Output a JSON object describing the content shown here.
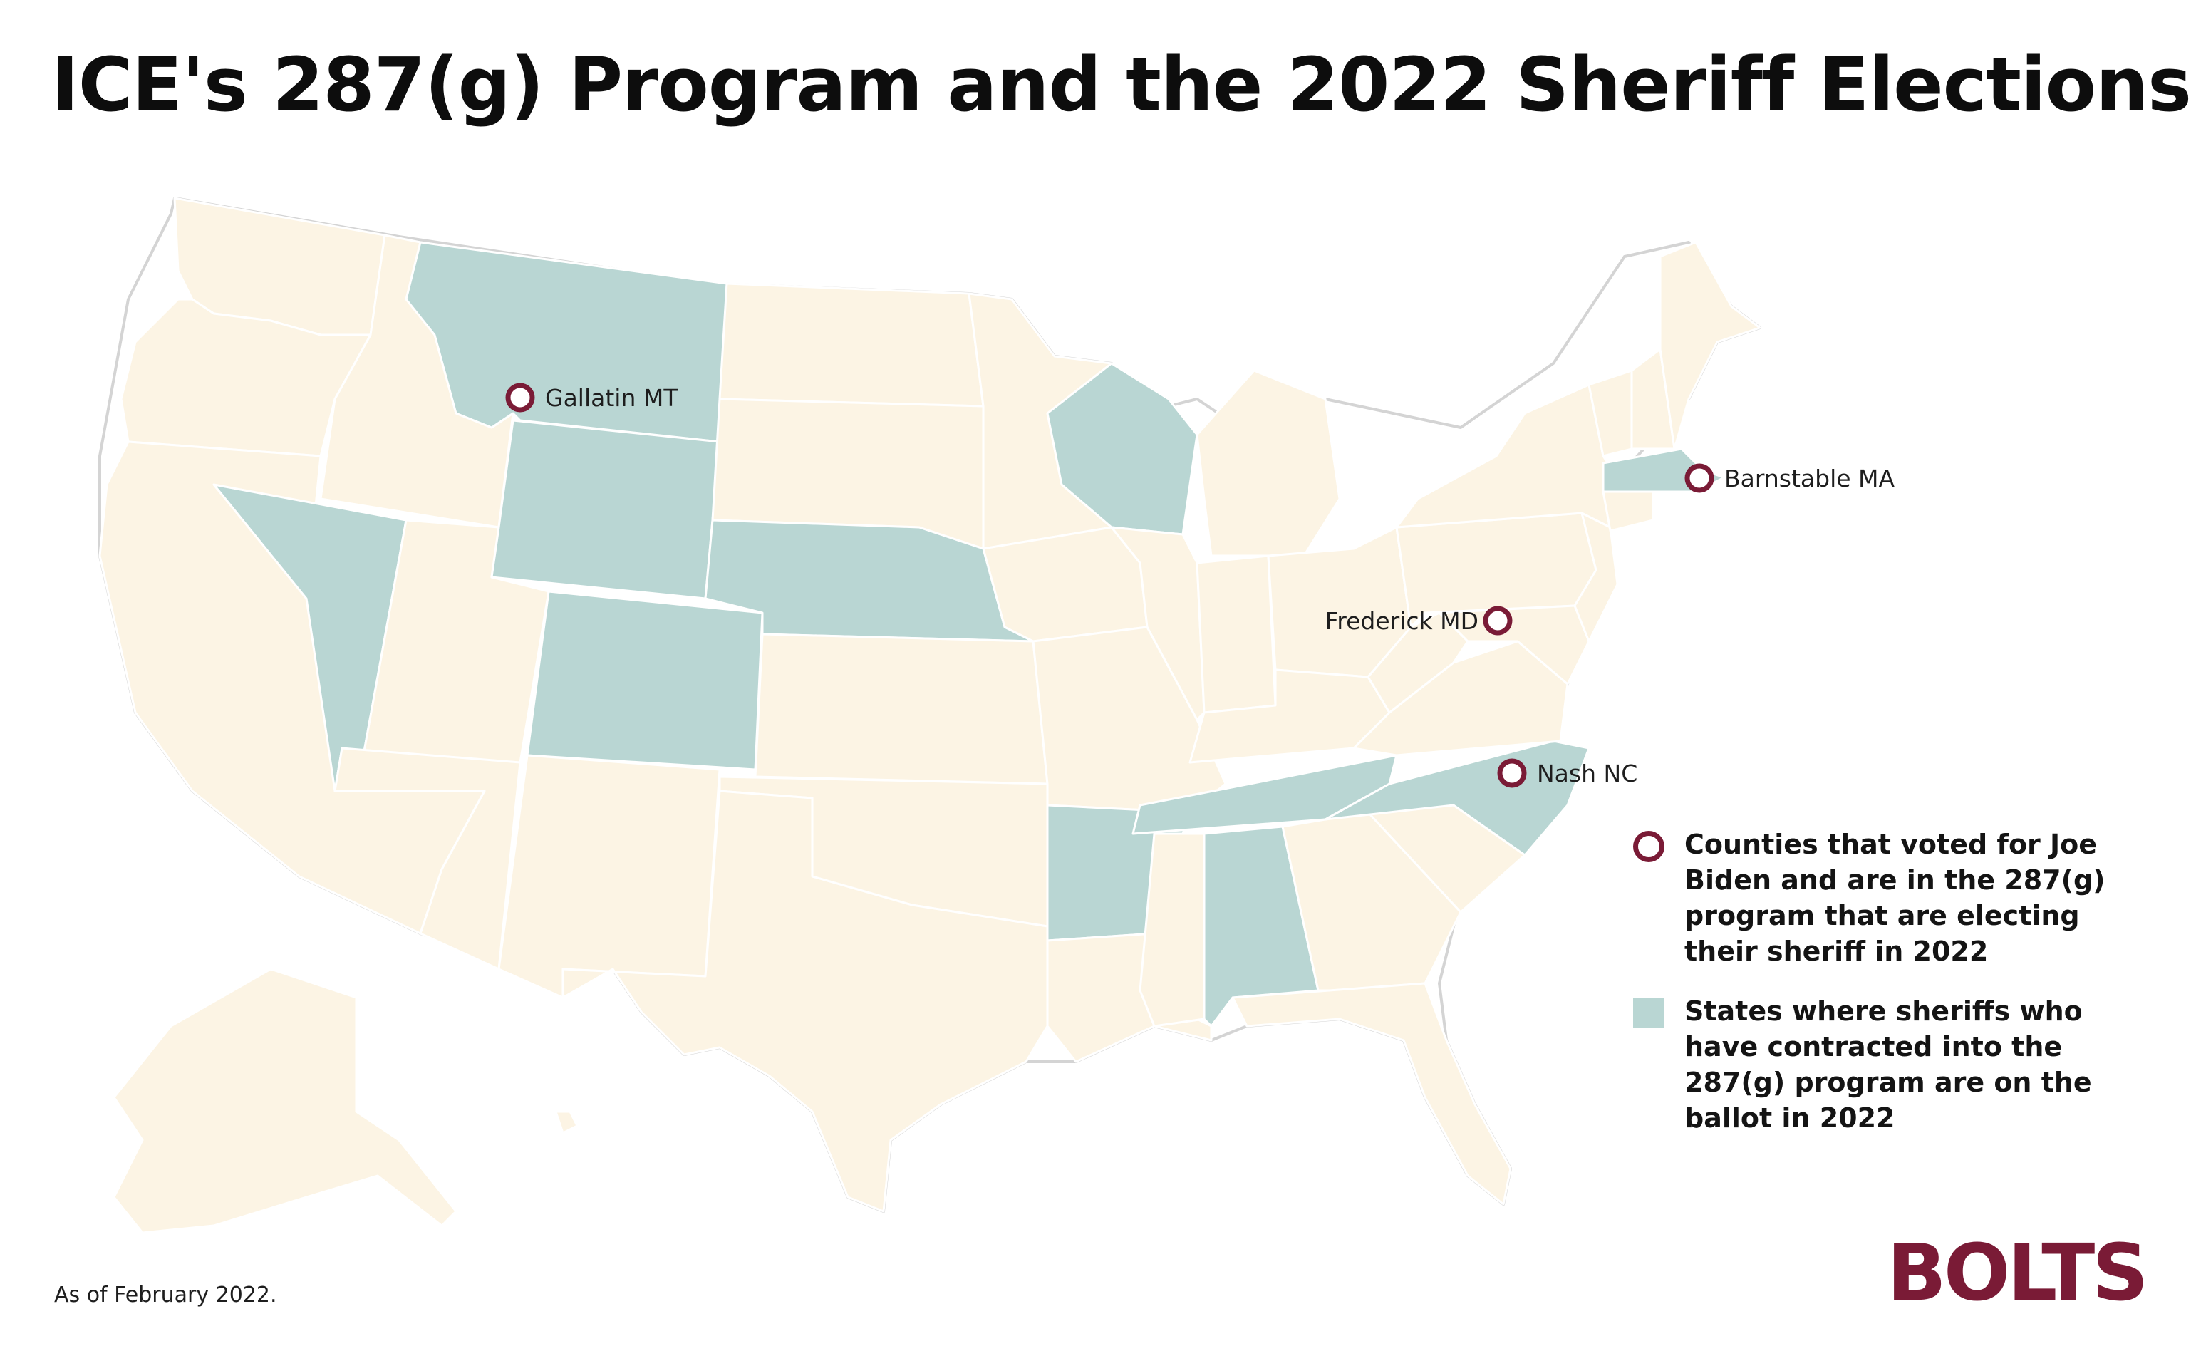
{
  "title": "ICE's 287(g) Program and the 2022 Sheriff Elections",
  "colors": {
    "highlight_state": "#b9d6d3",
    "other_state": "#fcf4e4",
    "marker": "#7a1b36",
    "logo": "#7a1b36"
  },
  "highlighted_states": [
    "Montana",
    "Wyoming",
    "Nevada",
    "Colorado",
    "Nebraska",
    "Wisconsin",
    "Arkansas",
    "Tennessee",
    "Alabama",
    "North Carolina",
    "Massachusetts"
  ],
  "counties": {
    "gallatin": "Gallatin MT",
    "barnstable": "Barnstable MA",
    "frederick": "Frederick MD",
    "nash": "Nash NC"
  },
  "legend": {
    "counties": "Counties that voted for Joe Biden and are in the 287(g) program that are electing their sheriff in 2022",
    "states": "States where sheriffs who have contracted into the 287(g) program are on the ballot in 2022"
  },
  "footnote": "As of February 2022.",
  "logo": "BOLTS"
}
